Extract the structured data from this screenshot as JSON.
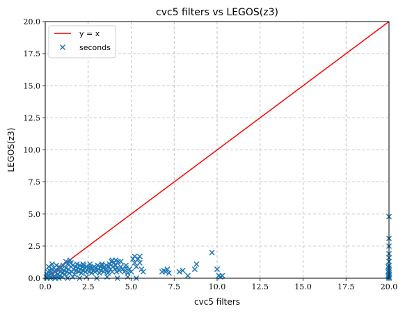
{
  "chart_data": {
    "type": "scatter",
    "title": "cvc5 filters vs LEGOS(z3)",
    "xlabel": "cvc5 filters",
    "ylabel": "LEGOS(z3)",
    "xlim": [
      0,
      20
    ],
    "ylim": [
      0,
      20
    ],
    "xticks": [
      "0.0",
      "2.5",
      "5.0",
      "7.5",
      "10.0",
      "12.5",
      "15.0",
      "17.5",
      "20.0"
    ],
    "yticks": [
      "0.0",
      "2.5",
      "5.0",
      "7.5",
      "10.0",
      "12.5",
      "15.0",
      "17.5",
      "20.0"
    ],
    "grid": true,
    "grid_style": "dashed",
    "legend_position": "top-left",
    "reference_line": {
      "name": "y = x",
      "color": "#ff0000",
      "points": [
        [
          0,
          0
        ],
        [
          20,
          20
        ]
      ]
    },
    "series": [
      {
        "name": "seconds",
        "marker": "x",
        "color": "#1f77b4",
        "points": [
          [
            0.05,
            0.1
          ],
          [
            0.1,
            0.3
          ],
          [
            0.15,
            0.5
          ],
          [
            0.2,
            0.2
          ],
          [
            0.25,
            0.6
          ],
          [
            0.3,
            0.4
          ],
          [
            0.35,
            0.1
          ],
          [
            0.4,
            0.7
          ],
          [
            0.45,
            0.3
          ],
          [
            0.5,
            0.8
          ],
          [
            0.55,
            0.2
          ],
          [
            0.6,
            0.5
          ],
          [
            0.65,
            1.0
          ],
          [
            0.7,
            0.3
          ],
          [
            0.75,
            0.6
          ],
          [
            0.8,
            0.9
          ],
          [
            0.85,
            0.2
          ],
          [
            0.9,
            0.5
          ],
          [
            0.95,
            0.7
          ],
          [
            1.0,
            0.4
          ],
          [
            1.05,
            1.0
          ],
          [
            1.1,
            0.6
          ],
          [
            1.15,
            0.3
          ],
          [
            1.2,
            0.8
          ],
          [
            1.25,
            0.5
          ],
          [
            1.3,
            1.1
          ],
          [
            1.35,
            0.7
          ],
          [
            1.4,
            0.4
          ],
          [
            1.45,
            1.4
          ],
          [
            1.5,
            0.9
          ],
          [
            1.55,
            0.5
          ],
          [
            1.6,
            1.0
          ],
          [
            1.65,
            0.7
          ],
          [
            1.7,
            0.3
          ],
          [
            1.75,
            0.9
          ],
          [
            1.8,
            0.6
          ],
          [
            1.85,
            1.1
          ],
          [
            1.9,
            0.8
          ],
          [
            1.95,
            0.5
          ],
          [
            2.0,
            1.0
          ],
          [
            2.05,
            0.7
          ],
          [
            2.1,
            0.4
          ],
          [
            2.15,
            0.9
          ],
          [
            2.2,
            0.6
          ],
          [
            2.25,
            1.0
          ],
          [
            2.3,
            0.8
          ],
          [
            2.35,
            0.5
          ],
          [
            2.4,
            0.9
          ],
          [
            2.45,
            0.6
          ],
          [
            2.5,
            0.8
          ],
          [
            2.55,
            0.5
          ],
          [
            2.6,
            0.9
          ],
          [
            2.65,
            0.7
          ],
          [
            2.7,
            0.4
          ],
          [
            2.75,
            0.8
          ],
          [
            2.8,
            0.6
          ],
          [
            2.85,
            0.9
          ],
          [
            2.9,
            0.5
          ],
          [
            2.95,
            0.8
          ],
          [
            3.0,
            0.6
          ],
          [
            3.05,
            1.0
          ],
          [
            3.1,
            0.7
          ],
          [
            3.15,
            0.4
          ],
          [
            3.2,
            0.9
          ],
          [
            3.25,
            0.6
          ],
          [
            3.3,
            1.0
          ],
          [
            3.35,
            0.8
          ],
          [
            3.4,
            0.5
          ],
          [
            3.45,
            0.9
          ],
          [
            3.5,
            0.7
          ],
          [
            3.55,
            1.0
          ],
          [
            3.6,
            0.6
          ],
          [
            3.65,
            0.4
          ],
          [
            3.7,
            0.9
          ],
          [
            3.75,
            1.1
          ],
          [
            3.8,
            0.7
          ],
          [
            3.85,
            1.3
          ],
          [
            3.9,
            0.5
          ],
          [
            3.95,
            0.9
          ],
          [
            4.0,
            1.2
          ],
          [
            4.05,
            0.7
          ],
          [
            4.1,
            1.0
          ],
          [
            4.15,
            0.5
          ],
          [
            4.2,
            0.8
          ],
          [
            4.25,
            1.3
          ],
          [
            4.3,
            0.6
          ],
          [
            4.4,
            0.9
          ],
          [
            4.5,
            0.7
          ],
          [
            4.6,
            0.5
          ],
          [
            4.7,
            0.8
          ],
          [
            4.8,
            0.4
          ],
          [
            4.9,
            0.7
          ],
          [
            5.0,
            0.5
          ],
          [
            5.1,
            1.5
          ],
          [
            5.2,
            1.2
          ],
          [
            5.3,
            0.9
          ],
          [
            5.4,
            1.5
          ],
          [
            5.5,
            1.2
          ],
          [
            5.6,
            0.7
          ],
          [
            5.7,
            0.5
          ],
          [
            0.1,
            0.0
          ],
          [
            0.3,
            0.0
          ],
          [
            0.5,
            0.1
          ],
          [
            0.8,
            0.0
          ],
          [
            1.0,
            0.1
          ],
          [
            1.3,
            0.0
          ],
          [
            1.6,
            0.1
          ],
          [
            2.0,
            0.0
          ],
          [
            2.4,
            0.1
          ],
          [
            3.0,
            0.0
          ],
          [
            3.6,
            0.1
          ],
          [
            4.2,
            0.0
          ],
          [
            4.8,
            0.1
          ],
          [
            5.3,
            0.0
          ],
          [
            0.2,
            0.9
          ],
          [
            0.4,
            1.1
          ],
          [
            0.6,
            0.0
          ],
          [
            1.2,
            1.3
          ],
          [
            1.5,
            1.2
          ],
          [
            2.2,
            1.1
          ],
          [
            2.6,
            1.1
          ],
          [
            3.3,
            1.1
          ],
          [
            3.9,
            1.4
          ],
          [
            4.4,
            1.3
          ],
          [
            4.1,
            1.4
          ],
          [
            4.7,
            1.0
          ],
          [
            5.5,
            1.7
          ],
          [
            5.2,
            1.7
          ],
          [
            6.8,
            0.5
          ],
          [
            6.9,
            0.6
          ],
          [
            7.0,
            0.5
          ],
          [
            7.1,
            0.7
          ],
          [
            7.2,
            0.4
          ],
          [
            7.8,
            0.5
          ],
          [
            8.0,
            0.6
          ],
          [
            8.3,
            0.2
          ],
          [
            8.7,
            0.7
          ],
          [
            8.8,
            1.1
          ],
          [
            9.7,
            2.0
          ],
          [
            10.0,
            0.7
          ],
          [
            10.1,
            0.2
          ],
          [
            10.2,
            0.1
          ],
          [
            10.3,
            0.2
          ],
          [
            20.0,
            4.8
          ],
          [
            20.0,
            3.1
          ],
          [
            20.0,
            2.5
          ],
          [
            20.0,
            1.9
          ],
          [
            20.0,
            1.6
          ],
          [
            20.0,
            1.3
          ],
          [
            20.0,
            1.0
          ],
          [
            20.0,
            0.8
          ],
          [
            20.0,
            0.6
          ],
          [
            20.0,
            0.4
          ],
          [
            20.0,
            0.3
          ],
          [
            20.0,
            0.2
          ],
          [
            20.0,
            0.1
          ],
          [
            20.0,
            0.05
          ],
          [
            20.0,
            0.0
          ],
          [
            19.95,
            0.9
          ],
          [
            19.95,
            0.5
          ],
          [
            19.95,
            0.2
          ]
        ]
      }
    ]
  }
}
